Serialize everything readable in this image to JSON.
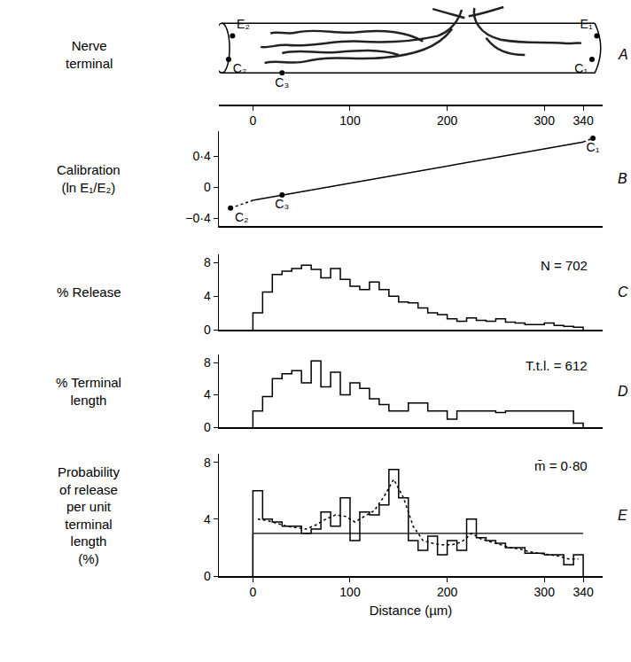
{
  "chart_data": [
    {
      "panel": "A",
      "type": "diagram",
      "ylabel": "Nerve\nterminal",
      "xlim": [
        -35,
        360
      ],
      "xticks": [
        0,
        100,
        200,
        300,
        340
      ],
      "tick_labels": "x",
      "electrodes": [
        {
          "label": "E₂",
          "x": -21
        },
        {
          "label": "C₂",
          "x": -25
        },
        {
          "label": "C₃",
          "x": 30
        },
        {
          "label": "E₁",
          "x": 354
        },
        {
          "label": "C₁",
          "x": 349
        }
      ],
      "color": "#000000"
    },
    {
      "panel": "B",
      "type": "scatter",
      "ylabel": "Calibration\n(ln E₁/E₂)",
      "xlim": [
        -35,
        360
      ],
      "ylim": [
        -0.5,
        0.72
      ],
      "yticks": [
        {
          "value": 0.4,
          "label": "0·4"
        },
        0,
        {
          "value": -0.4,
          "label": "−0·4"
        }
      ],
      "tick_labels": "y",
      "points": {
        "labels": [
          "C₂",
          "C₃",
          "C₁"
        ],
        "x": [
          -23,
          30,
          350
        ],
        "y": [
          -0.27,
          -0.1,
          0.63
        ]
      },
      "line": {
        "x": [
          0,
          340
        ],
        "y": [
          -0.17,
          0.58
        ]
      },
      "marker": "circle",
      "color": "#000000"
    },
    {
      "panel": "C",
      "type": "histogram",
      "ylabel": "% Release",
      "annotation": "N = 702",
      "xlim": [
        -35,
        360
      ],
      "ylim": [
        0,
        9
      ],
      "yticks": [
        0,
        4,
        8
      ],
      "tick_labels": "y",
      "bins": [
        0,
        10,
        20,
        30,
        40,
        50,
        60,
        70,
        80,
        90,
        100,
        110,
        120,
        130,
        140,
        150,
        160,
        170,
        180,
        190,
        200,
        210,
        220,
        230,
        240,
        250,
        260,
        270,
        280,
        290,
        300,
        310,
        320,
        330,
        340
      ],
      "values": [
        2.0,
        4.5,
        6.6,
        7.0,
        7.3,
        7.7,
        7.2,
        6.2,
        7.3,
        6.0,
        5.2,
        4.8,
        5.7,
        4.8,
        4.0,
        3.3,
        3.2,
        2.6,
        2.0,
        1.8,
        1.3,
        1.0,
        1.4,
        1.1,
        1.0,
        1.3,
        0.9,
        0.8,
        0.6,
        0.6,
        0.8,
        0.5,
        0.4,
        0.3
      ],
      "color": "#000000"
    },
    {
      "panel": "D",
      "type": "histogram",
      "ylabel": "% Terminal\nlength",
      "annotation": "T.t.l. = 612",
      "xlim": [
        -35,
        360
      ],
      "ylim": [
        0,
        9
      ],
      "yticks": [
        0,
        4,
        8
      ],
      "tick_labels": "y",
      "bins": [
        0,
        10,
        20,
        30,
        40,
        50,
        60,
        70,
        80,
        90,
        100,
        110,
        120,
        130,
        140,
        150,
        160,
        170,
        180,
        190,
        200,
        210,
        220,
        230,
        240,
        250,
        260,
        270,
        280,
        290,
        300,
        310,
        320,
        330,
        340
      ],
      "values": [
        2.0,
        3.8,
        6.0,
        6.6,
        7.0,
        5.5,
        8.2,
        5.0,
        6.8,
        4.0,
        5.5,
        4.8,
        3.5,
        2.8,
        2.0,
        2.0,
        3.0,
        3.0,
        2.0,
        2.0,
        1.0,
        2.0,
        2.0,
        2.0,
        2.0,
        1.8,
        2.0,
        2.0,
        2.0,
        2.0,
        2.0,
        2.0,
        2.0,
        0.5
      ],
      "color": "#000000"
    },
    {
      "panel": "E",
      "type": "histogram",
      "ylabel": "Probability\nof release\nper unit\nterminal\nlength\n(%)",
      "annotation": "m̄ = 0·80",
      "xlabel": "Distance (µm)",
      "xlim": [
        -35,
        360
      ],
      "ylim": [
        0,
        8.6
      ],
      "xticks": [
        0,
        100,
        200,
        300,
        340
      ],
      "yticks": [
        0,
        4,
        8
      ],
      "bins": [
        0,
        10,
        20,
        30,
        40,
        50,
        60,
        70,
        80,
        90,
        100,
        110,
        120,
        130,
        140,
        150,
        160,
        170,
        180,
        190,
        200,
        210,
        220,
        230,
        240,
        250,
        260,
        270,
        280,
        290,
        300,
        310,
        320,
        330,
        340
      ],
      "values": [
        6.0,
        4.0,
        3.8,
        3.5,
        3.5,
        3.0,
        3.3,
        4.5,
        3.5,
        5.5,
        2.5,
        4.5,
        4.3,
        5.0,
        7.5,
        5.5,
        2.5,
        1.8,
        2.8,
        1.5,
        2.5,
        1.8,
        4.0,
        2.7,
        2.5,
        2.3,
        2.0,
        2.0,
        1.6,
        1.6,
        1.5,
        1.5,
        0.8,
        1.5
      ],
      "smoothed": {
        "x": [
          5,
          15,
          25,
          35,
          45,
          55,
          65,
          75,
          85,
          95,
          105,
          115,
          125,
          135,
          145,
          155,
          165,
          175,
          185,
          195,
          205,
          215,
          225,
          235,
          245,
          255,
          265,
          275,
          285,
          295,
          305,
          315,
          325,
          335
        ],
        "values": [
          4.0,
          3.9,
          3.7,
          3.5,
          3.4,
          3.3,
          3.6,
          4.0,
          4.3,
          4.2,
          3.8,
          4.2,
          4.6,
          5.6,
          6.8,
          5.5,
          3.5,
          2.5,
          2.3,
          2.2,
          2.2,
          2.4,
          3.0,
          2.6,
          2.4,
          2.2,
          2.0,
          1.9,
          1.7,
          1.6,
          1.5,
          1.4,
          1.2,
          1.2
        ],
        "line_style": "dotted"
      },
      "mean_line": 3.0,
      "color": "#000000"
    }
  ]
}
